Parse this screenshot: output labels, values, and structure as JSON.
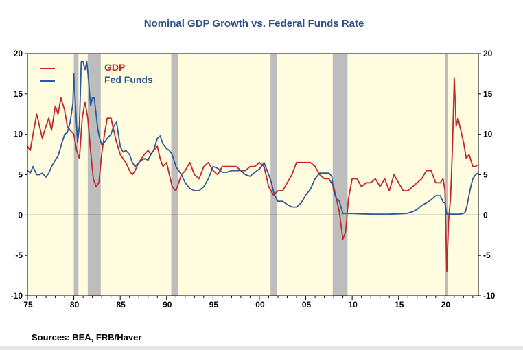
{
  "colors": {
    "gdp": "#c0282c",
    "fed_funds": "#2e5896",
    "plot_bg": "#fffce0",
    "recession": "#bdbdbd",
    "title": "#2b4f8c"
  },
  "footer": {
    "source": "Sources:  BEA, FRB/Haver"
  },
  "chart_data": {
    "type": "line",
    "title": "Nominal GDP Growth vs. Federal Funds Rate",
    "xlim": [
      1975,
      2023.6
    ],
    "ylim": [
      -10,
      20
    ],
    "x_ticks": [
      1975,
      1980,
      1985,
      1990,
      1995,
      2000,
      2005,
      2010,
      2015,
      2020
    ],
    "x_tick_labels": [
      "75",
      "80",
      "85",
      "90",
      "95",
      "00",
      "05",
      "10",
      "15",
      "20"
    ],
    "y_ticks": [
      -10,
      -5,
      0,
      5,
      10,
      15,
      20
    ],
    "y_tick_labels": [
      "-10",
      "-5",
      "0",
      "5",
      "10",
      "15",
      "20"
    ],
    "legend": {
      "position": "top-left",
      "entries": [
        "GDP",
        "Fed Funds"
      ]
    },
    "recessions": [
      [
        1980.0,
        1980.5
      ],
      [
        1981.5,
        1982.9
      ],
      [
        1990.5,
        1991.2
      ],
      [
        2001.2,
        2001.9
      ],
      [
        2007.9,
        2009.5
      ],
      [
        2020.0,
        2020.3
      ]
    ],
    "series": [
      {
        "name": "GDP",
        "x": [
          1975.0,
          1975.3,
          1975.6,
          1976.0,
          1976.3,
          1976.6,
          1977.0,
          1977.3,
          1977.6,
          1978.0,
          1978.3,
          1978.6,
          1979.0,
          1979.3,
          1979.6,
          1980.0,
          1980.3,
          1980.6,
          1980.9,
          1981.2,
          1981.5,
          1981.8,
          1982.1,
          1982.4,
          1982.7,
          1983.0,
          1983.3,
          1983.6,
          1984.0,
          1984.3,
          1984.6,
          1985.0,
          1985.3,
          1985.6,
          1986.0,
          1986.3,
          1986.6,
          1987.0,
          1987.3,
          1987.6,
          1988.0,
          1988.3,
          1988.6,
          1989.0,
          1989.3,
          1989.6,
          1990.0,
          1990.3,
          1990.6,
          1991.0,
          1991.3,
          1991.6,
          1992.0,
          1992.5,
          1993.0,
          1993.5,
          1994.0,
          1994.5,
          1995.0,
          1995.5,
          1996.0,
          1996.5,
          1997.0,
          1997.5,
          1998.0,
          1998.5,
          1999.0,
          1999.5,
          2000.0,
          2000.5,
          2001.0,
          2001.5,
          2002.0,
          2002.5,
          2003.0,
          2003.5,
          2004.0,
          2004.5,
          2005.0,
          2005.5,
          2006.0,
          2006.5,
          2007.0,
          2007.5,
          2008.0,
          2008.3,
          2008.6,
          2009.0,
          2009.3,
          2009.6,
          2010.0,
          2010.5,
          2011.0,
          2011.5,
          2012.0,
          2012.5,
          2013.0,
          2013.5,
          2014.0,
          2014.5,
          2015.0,
          2015.5,
          2016.0,
          2016.5,
          2017.0,
          2017.5,
          2018.0,
          2018.5,
          2019.0,
          2019.5,
          2019.8,
          2020.0,
          2020.2,
          2020.4,
          2020.6,
          2020.8,
          2021.0,
          2021.2,
          2021.4,
          2021.6,
          2021.8,
          2022.0,
          2022.3,
          2022.6,
          2023.0,
          2023.3,
          2023.5
        ],
        "values": [
          8.5,
          8.0,
          10.0,
          12.5,
          11.0,
          9.5,
          11.0,
          12.0,
          10.5,
          13.5,
          12.5,
          14.5,
          13.0,
          11.0,
          10.5,
          10.0,
          8.0,
          7.0,
          12.0,
          14.0,
          12.0,
          8.0,
          4.5,
          3.5,
          4.0,
          7.5,
          10.0,
          12.0,
          12.0,
          10.5,
          9.0,
          7.5,
          7.0,
          6.5,
          5.5,
          5.0,
          5.5,
          6.5,
          7.0,
          7.5,
          8.0,
          7.5,
          8.0,
          8.5,
          7.0,
          6.0,
          6.5,
          5.0,
          3.5,
          3.0,
          4.0,
          5.0,
          5.5,
          6.5,
          5.0,
          4.5,
          6.0,
          6.5,
          5.5,
          5.0,
          6.0,
          6.0,
          6.0,
          6.0,
          5.5,
          5.5,
          6.0,
          6.0,
          6.5,
          6.0,
          3.5,
          2.5,
          3.0,
          3.0,
          4.0,
          5.0,
          6.5,
          6.5,
          6.5,
          6.5,
          6.0,
          5.0,
          4.5,
          4.5,
          3.5,
          2.0,
          0.5,
          -3.0,
          -2.0,
          2.0,
          4.5,
          4.5,
          3.5,
          4.0,
          4.0,
          4.5,
          3.5,
          4.5,
          3.0,
          5.0,
          4.0,
          3.0,
          3.0,
          3.5,
          4.0,
          4.5,
          5.5,
          5.5,
          4.0,
          4.0,
          4.5,
          3.0,
          -7.0,
          -0.5,
          2.0,
          8.0,
          17.0,
          11.0,
          12.0,
          11.0,
          10.0,
          9.0,
          7.0,
          7.5,
          6.0,
          6.0,
          6.2
        ]
      },
      {
        "name": "Fed Funds",
        "x": [
          1975.0,
          1975.3,
          1975.6,
          1976.0,
          1976.3,
          1976.6,
          1977.0,
          1977.3,
          1977.6,
          1978.0,
          1978.3,
          1978.6,
          1979.0,
          1979.3,
          1979.6,
          1979.9,
          1980.0,
          1980.2,
          1980.4,
          1980.6,
          1980.8,
          1981.0,
          1981.2,
          1981.4,
          1981.6,
          1981.8,
          1982.0,
          1982.2,
          1982.4,
          1982.6,
          1982.8,
          1983.0,
          1983.3,
          1983.6,
          1984.0,
          1984.3,
          1984.6,
          1985.0,
          1985.3,
          1985.6,
          1986.0,
          1986.3,
          1986.6,
          1987.0,
          1987.3,
          1987.6,
          1988.0,
          1988.3,
          1988.6,
          1989.0,
          1989.3,
          1989.6,
          1990.0,
          1990.3,
          1990.6,
          1991.0,
          1991.3,
          1991.6,
          1992.0,
          1992.5,
          1993.0,
          1993.5,
          1994.0,
          1994.5,
          1995.0,
          1995.5,
          1996.0,
          1996.5,
          1997.0,
          1997.5,
          1998.0,
          1998.5,
          1999.0,
          1999.5,
          2000.0,
          2000.5,
          2001.0,
          2001.3,
          2001.6,
          2002.0,
          2002.5,
          2003.0,
          2003.5,
          2004.0,
          2004.5,
          2005.0,
          2005.5,
          2006.0,
          2006.5,
          2007.0,
          2007.5,
          2007.8,
          2008.0,
          2008.3,
          2008.6,
          2009.0,
          2010.0,
          2012.0,
          2014.0,
          2015.9,
          2016.5,
          2017.0,
          2017.5,
          2018.0,
          2018.5,
          2019.0,
          2019.5,
          2019.8,
          2020.0,
          2020.2,
          2021.0,
          2021.5,
          2022.0,
          2022.2,
          2022.4,
          2022.6,
          2022.8,
          2023.0,
          2023.3,
          2023.5
        ],
        "values": [
          5.5,
          5.2,
          6.0,
          5.0,
          5.0,
          5.2,
          4.7,
          5.2,
          6.0,
          6.8,
          7.3,
          8.5,
          10.0,
          10.2,
          11.5,
          13.8,
          17.5,
          13.0,
          9.0,
          11.0,
          19.0,
          19.0,
          18.0,
          19.0,
          16.5,
          13.5,
          14.5,
          14.5,
          12.5,
          10.5,
          9.5,
          8.7,
          9.0,
          9.5,
          10.0,
          11.0,
          11.5,
          8.5,
          7.8,
          8.0,
          7.5,
          6.5,
          6.0,
          6.5,
          6.8,
          7.0,
          6.8,
          7.5,
          8.0,
          9.5,
          9.8,
          8.8,
          8.2,
          8.0,
          7.5,
          6.0,
          5.5,
          5.0,
          4.0,
          3.3,
          3.0,
          3.0,
          3.5,
          4.5,
          6.0,
          5.8,
          5.3,
          5.3,
          5.5,
          5.5,
          5.5,
          5.0,
          4.8,
          5.3,
          5.7,
          6.5,
          5.0,
          4.0,
          2.5,
          1.7,
          1.7,
          1.3,
          1.0,
          1.0,
          1.5,
          2.5,
          3.2,
          4.5,
          5.2,
          5.2,
          5.2,
          4.8,
          3.0,
          2.0,
          1.8,
          0.2,
          0.2,
          0.1,
          0.1,
          0.2,
          0.4,
          0.7,
          1.2,
          1.5,
          1.9,
          2.4,
          2.4,
          1.6,
          1.5,
          0.1,
          0.1,
          0.1,
          0.2,
          0.4,
          1.3,
          2.5,
          3.6,
          4.5,
          5.0,
          5.2
        ]
      }
    ]
  }
}
